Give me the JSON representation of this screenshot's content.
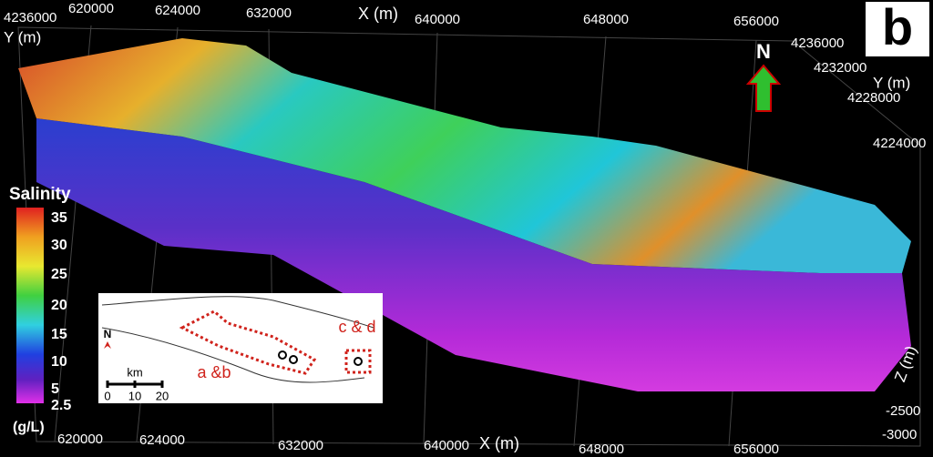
{
  "panel_label": "b",
  "top_axis": {
    "title": "X (m)",
    "ticks": [
      "620000",
      "624000",
      "632000",
      "640000",
      "648000",
      "656000"
    ]
  },
  "top_left_y": {
    "title": "Y (m)",
    "tick": "4236000"
  },
  "right_axis": {
    "title": "Y (m)",
    "ticks": [
      "4236000",
      "4232000",
      "4228000",
      "4224000"
    ]
  },
  "bottom_axis": {
    "title": "X (m)",
    "ticks": [
      "620000",
      "624000",
      "632000",
      "640000",
      "648000",
      "656000"
    ]
  },
  "z_axis": {
    "title": "Z (m)",
    "ticks": [
      "-2500",
      "-3000"
    ]
  },
  "north_arrow": "N",
  "colorbar": {
    "title": "Salinity",
    "unit": "(g/L)",
    "ticks": [
      "35",
      "30",
      "25",
      "20",
      "15",
      "10",
      "5",
      "2.5"
    ]
  },
  "inset": {
    "north": "N",
    "scale_title": "km",
    "scale_ticks": [
      "0",
      "10",
      "20"
    ],
    "labels": [
      "a &b",
      "c & d"
    ]
  }
}
